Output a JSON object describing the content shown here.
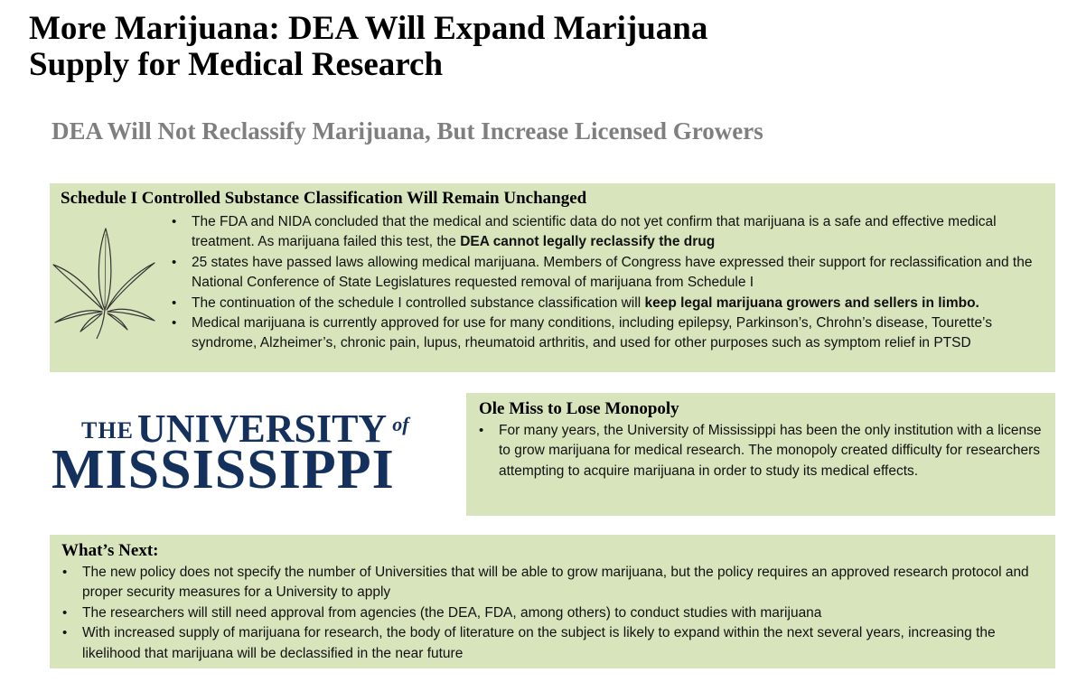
{
  "header": {
    "title_line1": "More Marijuana: DEA Will Expand Marijuana",
    "title_line2": "Supply for Medical Research",
    "subtitle": "DEA Will Not Reclassify Marijuana, But Increase Licensed Growers"
  },
  "schedule": {
    "heading": "Schedule I Controlled Substance Classification Will Remain Unchanged",
    "icon": "cannabis-leaf-icon",
    "b1_text": "The FDA and NIDA concluded that the medical and scientific data do not yet confirm that marijuana is a safe and effective medical treatment. As marijuana failed this test, the ",
    "b1_bold": "DEA cannot legally reclassify the drug",
    "b2_text": "25 states have passed laws allowing medical marijuana. Members of Congress have expressed their support for reclassification and the National Conference of State Legislatures requested removal of marijuana from Schedule I",
    "b3_text": "The continuation of the schedule I controlled substance classification will ",
    "b3_bold": "keep legal marijuana growers and sellers in limbo.",
    "b4_text": "Medical marijuana is currently approved for use for many conditions, including epilepsy, Parkinson’s, Chrohn’s disease, Tourette’s syndrome, Alzheimer’s, chronic pain, lupus, rheumatoid arthritis, and used for other purposes such as symptom relief in PTSD"
  },
  "logo": {
    "the": "THE",
    "university": "UNIVERSITY",
    "of": "of",
    "mississippi": "MISSISSIPPI"
  },
  "olemiss": {
    "heading": "Ole Miss to Lose Monopoly",
    "b1_text": "For many years, the University of Mississippi has been the only institution with a license to grow marijuana for medical research. The monopoly created difficulty for researchers attempting to acquire marijuana in order to study its medical effects."
  },
  "next": {
    "heading": "What’s Next:",
    "b1_text": "The new policy does not specify the number of Universities that will be able to grow marijuana, but the policy requires an approved research protocol and proper security measures for a University to apply",
    "b2_text": "The researchers will still need approval from agencies (the DEA, FDA, among others) to conduct studies with marijuana",
    "b3_text": "With increased supply of marijuana for research, the body of literature on the subject is likely to expand within the next several years, increasing the likelihood that marijuana will be declassified in the near future"
  },
  "colors": {
    "panel_bg": "#d8e4bc",
    "subtitle": "#7f7f7f",
    "logo_navy": "#14315e"
  }
}
